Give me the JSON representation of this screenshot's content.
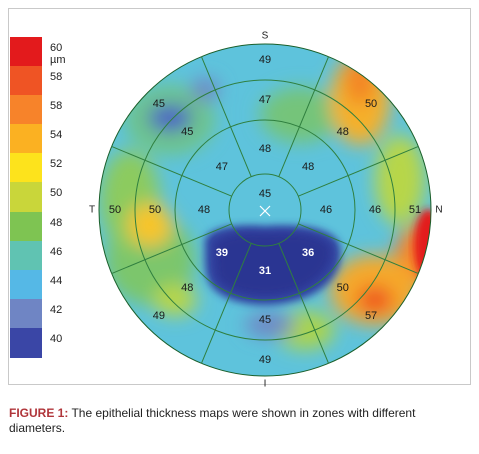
{
  "scale": {
    "labels": [
      "60 µm",
      "58",
      "58",
      "54",
      "52",
      "50",
      "48",
      "46",
      "44",
      "42",
      "40"
    ],
    "colors": [
      "#e31a1c",
      "#ef5424",
      "#f7832a",
      "#fbb122",
      "#fde31c",
      "#c9d63a",
      "#7ec452",
      "#60c3b2",
      "#55b8e6",
      "#6f85c4",
      "#3a46a6"
    ]
  },
  "orientation": {
    "superior": "S",
    "inferior": "I",
    "temporal": "T",
    "nasal": "N"
  },
  "zones": {
    "center": "45",
    "ring2": {
      "top": "48",
      "upper_right": "48",
      "right": "46",
      "lower_right": "36",
      "bottom": "31",
      "lower_left": "39",
      "left": "48",
      "upper_left": "47"
    },
    "ring3": {
      "top": "47",
      "upper_right": "48",
      "right": "46",
      "lower_right": "50",
      "bottom": "45",
      "lower_left": "48",
      "left": "50",
      "upper_left": "45"
    },
    "ring4": {
      "top": "49",
      "upper_right": "50",
      "right": "51",
      "lower_right": "57",
      "bottom": "49",
      "lower_left": "49",
      "left": "50",
      "upper_left": "45"
    }
  },
  "caption": {
    "lead": "FIGURE 1:",
    "text": " The epithelial thickness maps were shown in zones with different diameters."
  }
}
